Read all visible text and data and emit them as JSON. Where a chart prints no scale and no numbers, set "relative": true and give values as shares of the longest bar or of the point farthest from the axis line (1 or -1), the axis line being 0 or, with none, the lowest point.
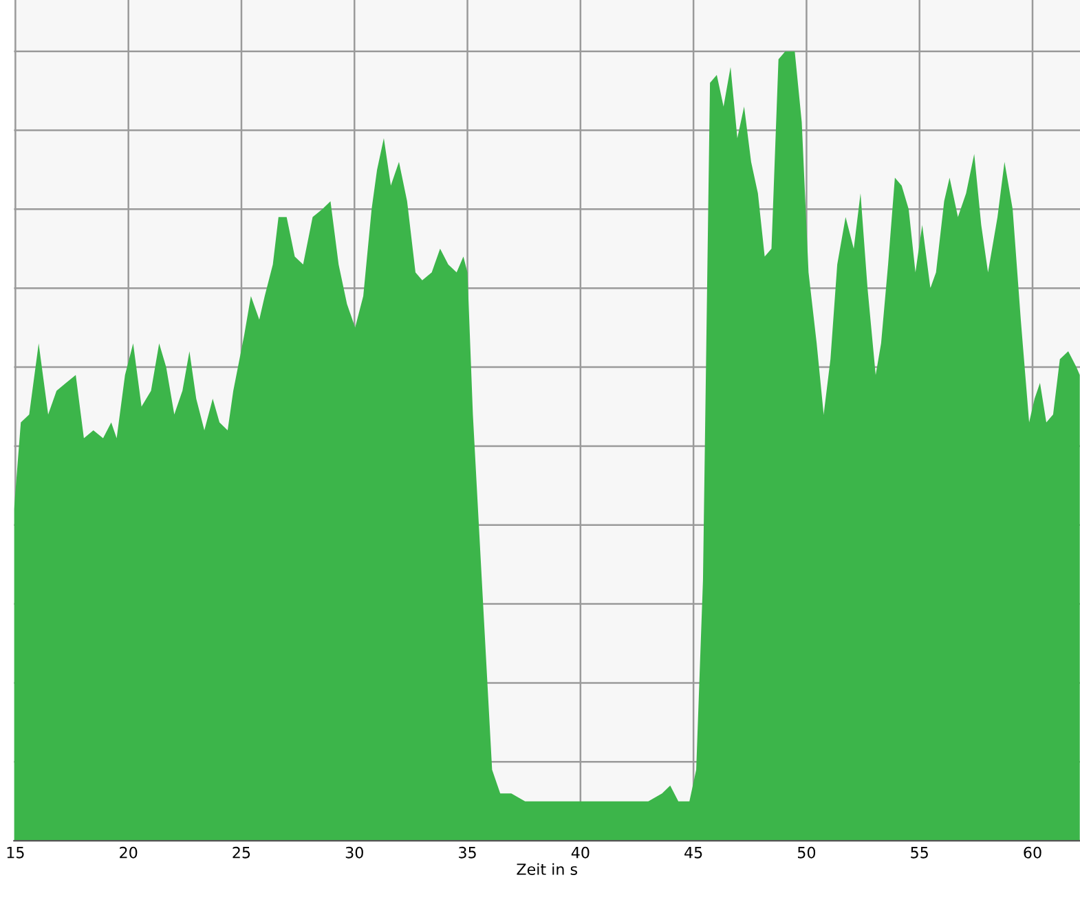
{
  "chart_data": {
    "type": "area",
    "xlabel": "Zeit in s",
    "relative": true,
    "grid": true,
    "tick_labels": "x",
    "xlim": [
      14.94,
      62.1
    ],
    "xticks": [
      15,
      20,
      25,
      30,
      35,
      40,
      45,
      50,
      55,
      60
    ],
    "series": [
      {
        "color": "#3cb54a",
        "x": [
          14.94,
          15.24,
          15.61,
          16.03,
          16.45,
          16.82,
          17.24,
          17.67,
          18.03,
          18.45,
          18.88,
          19.24,
          19.48,
          19.85,
          20.21,
          20.58,
          21.0,
          21.36,
          21.67,
          22.03,
          22.39,
          22.7,
          23.0,
          23.36,
          23.73,
          24.03,
          24.39,
          24.64,
          25.12,
          25.42,
          25.79,
          26.03,
          26.39,
          26.64,
          27.0,
          27.36,
          27.73,
          28.15,
          28.58,
          28.94,
          29.3,
          29.67,
          30.03,
          30.39,
          30.76,
          31.0,
          31.3,
          31.61,
          31.97,
          32.33,
          32.7,
          33.0,
          33.42,
          33.79,
          34.15,
          34.52,
          34.82,
          35.0,
          35.24,
          35.73,
          36.09,
          36.45,
          36.94,
          37.55,
          38.15,
          38.76,
          39.36,
          39.97,
          40.58,
          41.18,
          41.79,
          42.39,
          43.0,
          43.61,
          43.97,
          44.33,
          44.82,
          45.12,
          45.42,
          45.73,
          46.03,
          46.33,
          46.64,
          46.94,
          47.24,
          47.55,
          47.85,
          48.15,
          48.45,
          48.76,
          49.06,
          49.48,
          49.79,
          50.09,
          50.45,
          50.76,
          51.06,
          51.36,
          51.73,
          52.09,
          52.39,
          52.7,
          53.06,
          53.3,
          53.61,
          53.91,
          54.21,
          54.52,
          54.82,
          55.12,
          55.48,
          55.73,
          56.09,
          56.33,
          56.7,
          57.06,
          57.42,
          57.73,
          58.03,
          58.45,
          58.76,
          59.12,
          59.48,
          59.85,
          60.09,
          60.33,
          60.61,
          60.91,
          61.21,
          61.58,
          61.94,
          62.09
        ],
        "values": [
          0.42,
          0.53,
          0.54,
          0.63,
          0.54,
          0.57,
          0.58,
          0.59,
          0.51,
          0.52,
          0.51,
          0.53,
          0.51,
          0.59,
          0.63,
          0.55,
          0.57,
          0.63,
          0.6,
          0.54,
          0.57,
          0.62,
          0.56,
          0.52,
          0.56,
          0.53,
          0.52,
          0.57,
          0.64,
          0.69,
          0.66,
          0.69,
          0.73,
          0.79,
          0.79,
          0.74,
          0.73,
          0.79,
          0.8,
          0.81,
          0.73,
          0.68,
          0.65,
          0.69,
          0.8,
          0.85,
          0.89,
          0.83,
          0.86,
          0.81,
          0.72,
          0.71,
          0.72,
          0.75,
          0.73,
          0.72,
          0.74,
          0.72,
          0.54,
          0.28,
          0.09,
          0.06,
          0.06,
          0.05,
          0.05,
          0.05,
          0.05,
          0.05,
          0.05,
          0.05,
          0.05,
          0.05,
          0.05,
          0.06,
          0.07,
          0.05,
          0.05,
          0.09,
          0.33,
          0.96,
          0.97,
          0.93,
          0.98,
          0.89,
          0.93,
          0.86,
          0.82,
          0.74,
          0.75,
          0.99,
          1.0,
          1.0,
          0.91,
          0.72,
          0.63,
          0.54,
          0.61,
          0.73,
          0.79,
          0.75,
          0.82,
          0.7,
          0.59,
          0.63,
          0.73,
          0.84,
          0.83,
          0.8,
          0.72,
          0.78,
          0.7,
          0.72,
          0.81,
          0.84,
          0.79,
          0.82,
          0.87,
          0.78,
          0.72,
          0.79,
          0.86,
          0.8,
          0.66,
          0.53,
          0.56,
          0.58,
          0.53,
          0.54,
          0.61,
          0.62,
          0.6,
          0.59
        ]
      }
    ]
  }
}
